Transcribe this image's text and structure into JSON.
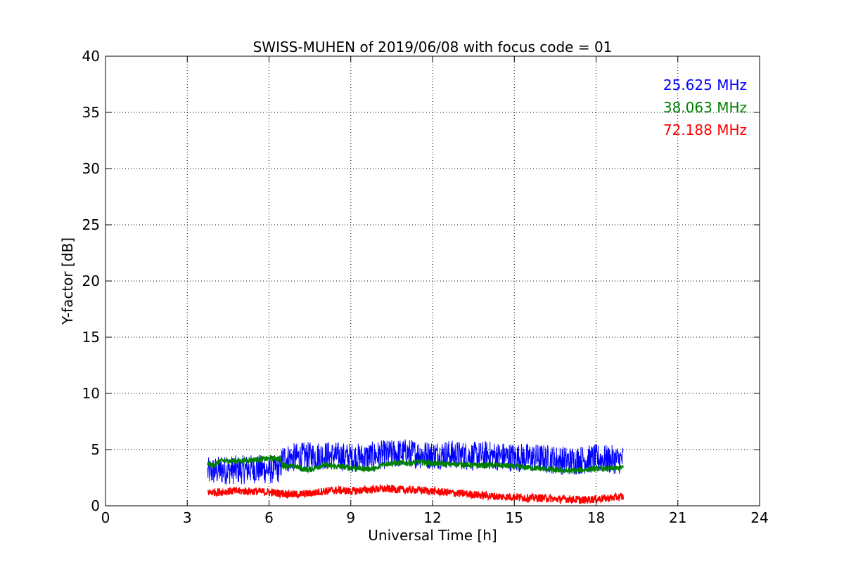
{
  "chart_data": {
    "type": "line",
    "title": "SWISS-MUHEN of 2019/06/08 with focus code = 01",
    "xlabel": "Universal Time [h]",
    "ylabel": "Y-factor [dB]",
    "xlim": [
      0,
      24
    ],
    "ylim": [
      0,
      40
    ],
    "xticks": [
      0,
      3,
      6,
      9,
      12,
      15,
      18,
      21,
      24
    ],
    "yticks": [
      0,
      5,
      10,
      15,
      20,
      25,
      30,
      35,
      40
    ],
    "xtick_labels": [
      "0",
      "3",
      "6",
      "9",
      "12",
      "15",
      "18",
      "21",
      "24"
    ],
    "ytick_labels": [
      "0",
      "5",
      "10",
      "15",
      "20",
      "25",
      "30",
      "35",
      "40"
    ],
    "grid": true,
    "legend_position": "top-right",
    "series": [
      {
        "name": "25.625 MHz",
        "color": "#0000ff",
        "x": [
          3.75,
          4.0,
          4.5,
          5.0,
          5.5,
          6.0,
          6.4,
          6.5,
          7.0,
          7.5,
          8.0,
          8.5,
          9.0,
          9.5,
          10.0,
          10.5,
          11.0,
          11.5,
          12.0,
          12.5,
          13.0,
          13.5,
          14.0,
          14.5,
          15.0,
          15.5,
          16.0,
          16.5,
          17.0,
          17.5,
          18.0,
          18.5,
          19.0
        ],
        "values": [
          3.0,
          3.1,
          3.2,
          3.2,
          3.3,
          3.2,
          3.3,
          4.2,
          4.3,
          4.4,
          4.5,
          4.4,
          4.3,
          4.3,
          4.5,
          4.6,
          4.7,
          4.6,
          4.5,
          4.6,
          4.5,
          4.4,
          4.5,
          4.4,
          4.3,
          4.3,
          4.2,
          4.1,
          4.0,
          4.1,
          4.2,
          4.1,
          4.1
        ],
        "spread": 1.3
      },
      {
        "name": "38.063 MHz",
        "color": "#008000",
        "x": [
          3.75,
          4.0,
          4.2,
          4.5,
          5.0,
          5.5,
          6.0,
          6.4,
          6.5,
          7.0,
          7.2,
          7.5,
          7.8,
          8.0,
          8.5,
          9.0,
          9.5,
          10.0,
          10.1,
          10.5,
          11.0,
          11.5,
          12.0,
          12.5,
          13.0,
          13.5,
          14.0,
          14.5,
          15.0,
          15.5,
          16.0,
          16.5,
          17.0,
          17.5,
          18.0,
          18.5,
          19.0
        ],
        "values": [
          3.7,
          3.6,
          4.0,
          4.0,
          4.0,
          4.1,
          4.2,
          4.2,
          3.6,
          3.5,
          3.3,
          3.2,
          3.5,
          3.6,
          3.5,
          3.4,
          3.3,
          3.3,
          3.7,
          3.8,
          3.8,
          3.9,
          3.8,
          3.7,
          3.7,
          3.6,
          3.6,
          3.6,
          3.5,
          3.4,
          3.3,
          3.2,
          3.1,
          3.2,
          3.3,
          3.3,
          3.4
        ],
        "spread": 0.25
      },
      {
        "name": "72.188 MHz",
        "color": "#ff0000",
        "x": [
          3.75,
          4.0,
          4.5,
          5.0,
          5.5,
          6.0,
          6.5,
          7.0,
          7.5,
          8.0,
          8.5,
          9.0,
          9.5,
          10.0,
          10.5,
          11.0,
          11.5,
          12.0,
          12.5,
          13.0,
          13.5,
          14.0,
          14.5,
          15.0,
          15.5,
          16.0,
          16.5,
          17.0,
          17.5,
          18.0,
          18.5,
          19.0
        ],
        "values": [
          1.2,
          1.2,
          1.3,
          1.3,
          1.3,
          1.2,
          1.1,
          1.0,
          1.1,
          1.3,
          1.4,
          1.3,
          1.4,
          1.5,
          1.5,
          1.4,
          1.4,
          1.3,
          1.2,
          1.1,
          1.0,
          0.9,
          0.8,
          0.8,
          0.7,
          0.7,
          0.6,
          0.6,
          0.5,
          0.6,
          0.7,
          0.8
        ],
        "spread": 0.35
      }
    ]
  }
}
